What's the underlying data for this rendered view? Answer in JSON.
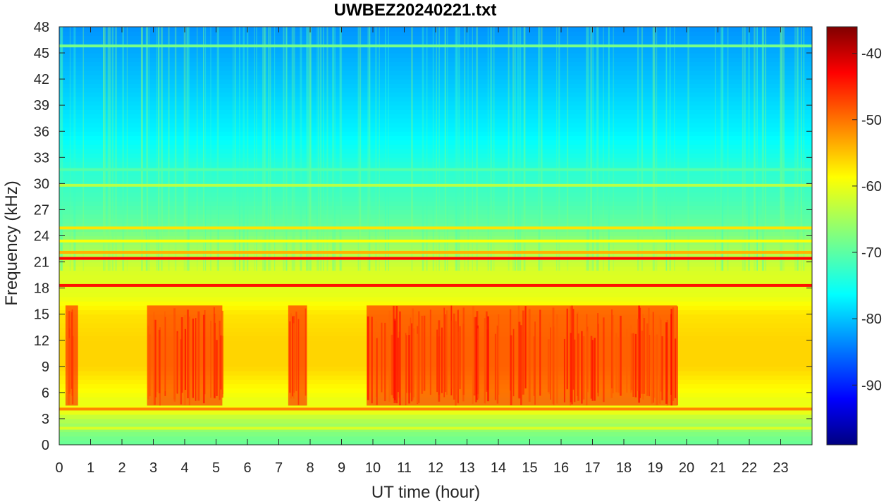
{
  "chart_data": {
    "type": "heatmap",
    "title": "UWBEZ20240221.txt",
    "xlabel": "UT time (hour)",
    "ylabel": "Frequency (kHz)",
    "xlim": [
      0,
      24
    ],
    "ylim": [
      0,
      48
    ],
    "xticks": [
      0,
      1,
      2,
      3,
      4,
      5,
      6,
      7,
      8,
      9,
      10,
      11,
      12,
      13,
      14,
      15,
      16,
      17,
      18,
      19,
      20,
      21,
      22,
      23
    ],
    "xtick_labels": [
      "0",
      "1",
      "2",
      "3",
      "4",
      "5",
      "6",
      "7",
      "8",
      "9",
      "10",
      "11",
      "12",
      "13",
      "14",
      "15",
      "16",
      "17",
      "18",
      "19",
      "20",
      "21",
      "22",
      "23"
    ],
    "yticks": [
      0,
      3,
      6,
      9,
      12,
      15,
      18,
      21,
      24,
      27,
      30,
      33,
      36,
      39,
      42,
      45,
      48
    ],
    "ytick_labels": [
      "0",
      "3",
      "6",
      "9",
      "12",
      "15",
      "18",
      "21",
      "24",
      "27",
      "30",
      "33",
      "36",
      "39",
      "42",
      "45",
      "48"
    ],
    "colormap": "jet",
    "colorbar": {
      "range": [
        -99,
        -36
      ],
      "ticks": [
        -90,
        -80,
        -70,
        -60,
        -50,
        -40
      ],
      "tick_labels": [
        "-90",
        "-80",
        "-70",
        "-60",
        "-50",
        "-40"
      ]
    },
    "background_spectrum": {
      "freq_khz": [
        0,
        1,
        2,
        3,
        4,
        5,
        7,
        9,
        12,
        15,
        17,
        20,
        22.5,
        25,
        28,
        32,
        36,
        42,
        48
      ],
      "level": [
        -69,
        -68,
        -66,
        -64,
        -60,
        -61,
        -59,
        -57,
        -57,
        -58,
        -61,
        -62,
        -65,
        -69,
        -71,
        -73,
        -76,
        -79,
        -82
      ]
    },
    "emission_bursts": {
      "freq_range_khz": [
        4.5,
        16
      ],
      "time_windows_hour": [
        [
          0.2,
          0.6
        ],
        [
          2.8,
          5.2
        ],
        [
          7.3,
          7.9
        ],
        [
          9.8,
          19.7
        ]
      ],
      "peak_level": -48
    },
    "transmitter_lines": [
      {
        "freq_khz": 1.9,
        "level": -62
      },
      {
        "freq_khz": 4.1,
        "level": -52
      },
      {
        "freq_khz": 18.3,
        "level": -45
      },
      {
        "freq_khz": 21.4,
        "level": -44
      },
      {
        "freq_khz": 22.1,
        "level": -55
      },
      {
        "freq_khz": 23.4,
        "level": -60
      },
      {
        "freq_khz": 24.9,
        "level": -58
      },
      {
        "freq_khz": 29.8,
        "level": -64
      },
      {
        "freq_khz": 31.6,
        "level": -70
      },
      {
        "freq_khz": 45.8,
        "level": -68
      }
    ]
  }
}
